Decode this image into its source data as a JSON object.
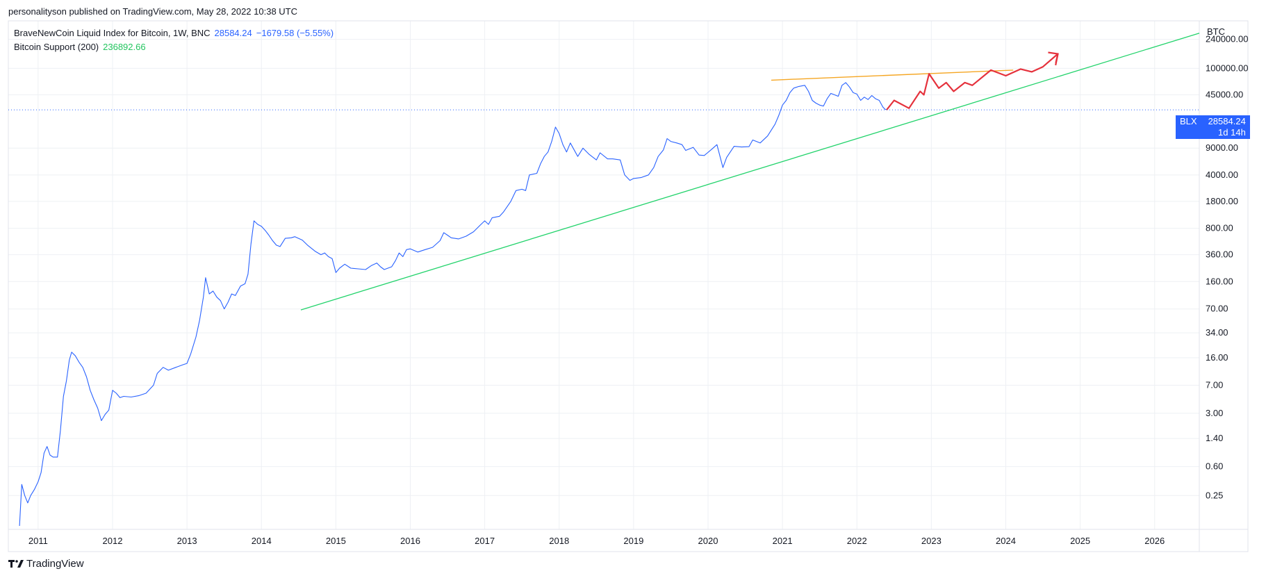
{
  "header": {
    "published_line": "personalityson published on TradingView.com, May 28, 2022 10:38 UTC"
  },
  "legend": {
    "main": {
      "title": "BraveNewCoin Liquid Index for Bitcoin, 1W, BNC",
      "value": "28584.24",
      "change": "−1679.58 (−5.55%)"
    },
    "indicator": {
      "title": "Bitcoin Support (200)",
      "value": "236892.66"
    }
  },
  "price_tag": {
    "symbol": "BLX",
    "value": "28584.24",
    "countdown": "1d 14h"
  },
  "footer": {
    "brand": "TradingView"
  },
  "colors": {
    "price": "#2962ff",
    "support": "#22d36b",
    "resistance": "#f5a623",
    "projection": "#e5313c",
    "grid": "#eef0f4"
  },
  "chart_data": {
    "type": "line",
    "scale": "log",
    "unit_label": "BTC",
    "x_ticks": [
      "2011",
      "2012",
      "2013",
      "2014",
      "2015",
      "2016",
      "2017",
      "2018",
      "2019",
      "2020",
      "2021",
      "2022",
      "2023",
      "2024",
      "2025",
      "2026"
    ],
    "xlim": [
      2010.6,
      2026.6
    ],
    "y_ticks": [
      "240000.00",
      "100000.00",
      "45000.00",
      "9000.00",
      "4000.00",
      "1800.00",
      "800.00",
      "360.00",
      "160.00",
      "70.00",
      "34.00",
      "16.00",
      "7.00",
      "3.00",
      "1.40",
      "0.60",
      "0.25"
    ],
    "y_tick_values": [
      240000,
      100000,
      45000,
      9000,
      4000,
      1800,
      800,
      360,
      160,
      70,
      34,
      16,
      7,
      3,
      1.4,
      0.6,
      0.25
    ],
    "ylim": [
      0.09,
      420000
    ],
    "last_price": 28584.24,
    "grid": true,
    "series": [
      {
        "kind": "price",
        "points": [
          [
            2010.75,
            0.1
          ],
          [
            2010.78,
            0.35
          ],
          [
            2010.82,
            0.25
          ],
          [
            2010.86,
            0.2
          ],
          [
            2010.9,
            0.25
          ],
          [
            2010.95,
            0.3
          ],
          [
            2011.0,
            0.38
          ],
          [
            2011.04,
            0.5
          ],
          [
            2011.08,
            0.9
          ],
          [
            2011.12,
            1.1
          ],
          [
            2011.16,
            0.85
          ],
          [
            2011.2,
            0.8
          ],
          [
            2011.26,
            0.8
          ],
          [
            2011.3,
            1.8
          ],
          [
            2011.34,
            5
          ],
          [
            2011.38,
            8
          ],
          [
            2011.42,
            15
          ],
          [
            2011.45,
            19
          ],
          [
            2011.5,
            17
          ],
          [
            2011.55,
            14
          ],
          [
            2011.6,
            12
          ],
          [
            2011.65,
            9
          ],
          [
            2011.7,
            6
          ],
          [
            2011.75,
            4.5
          ],
          [
            2011.8,
            3.5
          ],
          [
            2011.85,
            2.4
          ],
          [
            2011.9,
            2.9
          ],
          [
            2011.95,
            3.3
          ],
          [
            2012.0,
            6.0
          ],
          [
            2012.05,
            5.5
          ],
          [
            2012.1,
            4.8
          ],
          [
            2012.15,
            5.0
          ],
          [
            2012.25,
            4.9
          ],
          [
            2012.35,
            5.1
          ],
          [
            2012.45,
            5.5
          ],
          [
            2012.55,
            7.0
          ],
          [
            2012.6,
            10
          ],
          [
            2012.68,
            12
          ],
          [
            2012.75,
            11
          ],
          [
            2012.85,
            12
          ],
          [
            2012.95,
            13
          ],
          [
            2013.0,
            13.5
          ],
          [
            2013.05,
            18
          ],
          [
            2013.12,
            30
          ],
          [
            2013.17,
            50
          ],
          [
            2013.22,
            100
          ],
          [
            2013.25,
            180
          ],
          [
            2013.3,
            110
          ],
          [
            2013.35,
            120
          ],
          [
            2013.4,
            100
          ],
          [
            2013.45,
            90
          ],
          [
            2013.5,
            70
          ],
          [
            2013.55,
            85
          ],
          [
            2013.6,
            110
          ],
          [
            2013.65,
            105
          ],
          [
            2013.72,
            140
          ],
          [
            2013.78,
            150
          ],
          [
            2013.82,
            200
          ],
          [
            2013.86,
            500
          ],
          [
            2013.9,
            1000
          ],
          [
            2013.95,
            900
          ],
          [
            2014.0,
            850
          ],
          [
            2014.05,
            750
          ],
          [
            2014.1,
            650
          ],
          [
            2014.15,
            550
          ],
          [
            2014.2,
            480
          ],
          [
            2014.25,
            460
          ],
          [
            2014.32,
            590
          ],
          [
            2014.4,
            600
          ],
          [
            2014.45,
            620
          ],
          [
            2014.55,
            560
          ],
          [
            2014.62,
            480
          ],
          [
            2014.72,
            400
          ],
          [
            2014.8,
            360
          ],
          [
            2014.85,
            380
          ],
          [
            2014.9,
            340
          ],
          [
            2014.95,
            320
          ],
          [
            2015.0,
            210
          ],
          [
            2015.05,
            240
          ],
          [
            2015.12,
            270
          ],
          [
            2015.2,
            240
          ],
          [
            2015.3,
            235
          ],
          [
            2015.4,
            230
          ],
          [
            2015.48,
            260
          ],
          [
            2015.55,
            280
          ],
          [
            2015.6,
            250
          ],
          [
            2015.65,
            230
          ],
          [
            2015.7,
            240
          ],
          [
            2015.75,
            250
          ],
          [
            2015.8,
            300
          ],
          [
            2015.85,
            380
          ],
          [
            2015.9,
            340
          ],
          [
            2015.95,
            420
          ],
          [
            2016.0,
            430
          ],
          [
            2016.1,
            390
          ],
          [
            2016.2,
            420
          ],
          [
            2016.3,
            450
          ],
          [
            2016.4,
            550
          ],
          [
            2016.45,
            700
          ],
          [
            2016.5,
            650
          ],
          [
            2016.55,
            600
          ],
          [
            2016.65,
            580
          ],
          [
            2016.75,
            630
          ],
          [
            2016.85,
            720
          ],
          [
            2016.95,
            900
          ],
          [
            2017.0,
            1000
          ],
          [
            2017.05,
            900
          ],
          [
            2017.1,
            1100
          ],
          [
            2017.2,
            1150
          ],
          [
            2017.25,
            1300
          ],
          [
            2017.35,
            1800
          ],
          [
            2017.42,
            2500
          ],
          [
            2017.5,
            2600
          ],
          [
            2017.55,
            2500
          ],
          [
            2017.6,
            4000
          ],
          [
            2017.7,
            4200
          ],
          [
            2017.75,
            5600
          ],
          [
            2017.8,
            7000
          ],
          [
            2017.85,
            8000
          ],
          [
            2017.9,
            11000
          ],
          [
            2017.95,
            17000
          ],
          [
            2018.0,
            14000
          ],
          [
            2018.05,
            10000
          ],
          [
            2018.1,
            8000
          ],
          [
            2018.15,
            10500
          ],
          [
            2018.25,
            7000
          ],
          [
            2018.32,
            9000
          ],
          [
            2018.4,
            7500
          ],
          [
            2018.5,
            6300
          ],
          [
            2018.55,
            7800
          ],
          [
            2018.65,
            6500
          ],
          [
            2018.72,
            6500
          ],
          [
            2018.82,
            6300
          ],
          [
            2018.88,
            4000
          ],
          [
            2018.95,
            3400
          ],
          [
            2019.0,
            3600
          ],
          [
            2019.1,
            3700
          ],
          [
            2019.2,
            4000
          ],
          [
            2019.27,
            5000
          ],
          [
            2019.33,
            7000
          ],
          [
            2019.4,
            8500
          ],
          [
            2019.45,
            12000
          ],
          [
            2019.5,
            11000
          ],
          [
            2019.58,
            10500
          ],
          [
            2019.65,
            10000
          ],
          [
            2019.7,
            8400
          ],
          [
            2019.8,
            9200
          ],
          [
            2019.88,
            7300
          ],
          [
            2019.95,
            7200
          ],
          [
            2020.05,
            8700
          ],
          [
            2020.12,
            10000
          ],
          [
            2020.2,
            5000
          ],
          [
            2020.25,
            6800
          ],
          [
            2020.35,
            9500
          ],
          [
            2020.45,
            9300
          ],
          [
            2020.55,
            9400
          ],
          [
            2020.6,
            11500
          ],
          [
            2020.7,
            10500
          ],
          [
            2020.8,
            13000
          ],
          [
            2020.85,
            15500
          ],
          [
            2020.9,
            18500
          ],
          [
            2020.95,
            24000
          ],
          [
            2021.0,
            33000
          ],
          [
            2021.05,
            38000
          ],
          [
            2021.1,
            48000
          ],
          [
            2021.15,
            55000
          ],
          [
            2021.22,
            58000
          ],
          [
            2021.3,
            60000
          ],
          [
            2021.35,
            50000
          ],
          [
            2021.4,
            38000
          ],
          [
            2021.45,
            35000
          ],
          [
            2021.5,
            33000
          ],
          [
            2021.55,
            32000
          ],
          [
            2021.6,
            40000
          ],
          [
            2021.65,
            47000
          ],
          [
            2021.7,
            45000
          ],
          [
            2021.75,
            43000
          ],
          [
            2021.8,
            60000
          ],
          [
            2021.85,
            65000
          ],
          [
            2021.9,
            57000
          ],
          [
            2021.95,
            48000
          ],
          [
            2022.0,
            46000
          ],
          [
            2022.05,
            38000
          ],
          [
            2022.1,
            42000
          ],
          [
            2022.15,
            39000
          ],
          [
            2022.2,
            44000
          ],
          [
            2022.25,
            40000
          ],
          [
            2022.3,
            38000
          ],
          [
            2022.35,
            31000
          ],
          [
            2022.38,
            29000
          ],
          [
            2022.41,
            28584
          ]
        ]
      },
      {
        "kind": "support",
        "points": [
          [
            2014.53,
            68
          ],
          [
            2026.6,
            290000
          ]
        ]
      },
      {
        "kind": "resistance",
        "points": [
          [
            2020.85,
            70000
          ],
          [
            2024.1,
            95000
          ]
        ]
      },
      {
        "kind": "projection",
        "points": [
          [
            2022.4,
            28584
          ],
          [
            2022.5,
            38000
          ],
          [
            2022.7,
            30000
          ],
          [
            2022.85,
            50000
          ],
          [
            2022.9,
            45000
          ],
          [
            2022.97,
            85000
          ],
          [
            2023.1,
            55000
          ],
          [
            2023.2,
            65000
          ],
          [
            2023.3,
            50000
          ],
          [
            2023.45,
            65000
          ],
          [
            2023.55,
            60000
          ],
          [
            2023.8,
            95000
          ],
          [
            2024.0,
            80000
          ],
          [
            2024.2,
            98000
          ],
          [
            2024.35,
            90000
          ],
          [
            2024.5,
            105000
          ],
          [
            2024.7,
            155000
          ],
          [
            2024.67,
            110000
          ]
        ]
      }
    ]
  }
}
